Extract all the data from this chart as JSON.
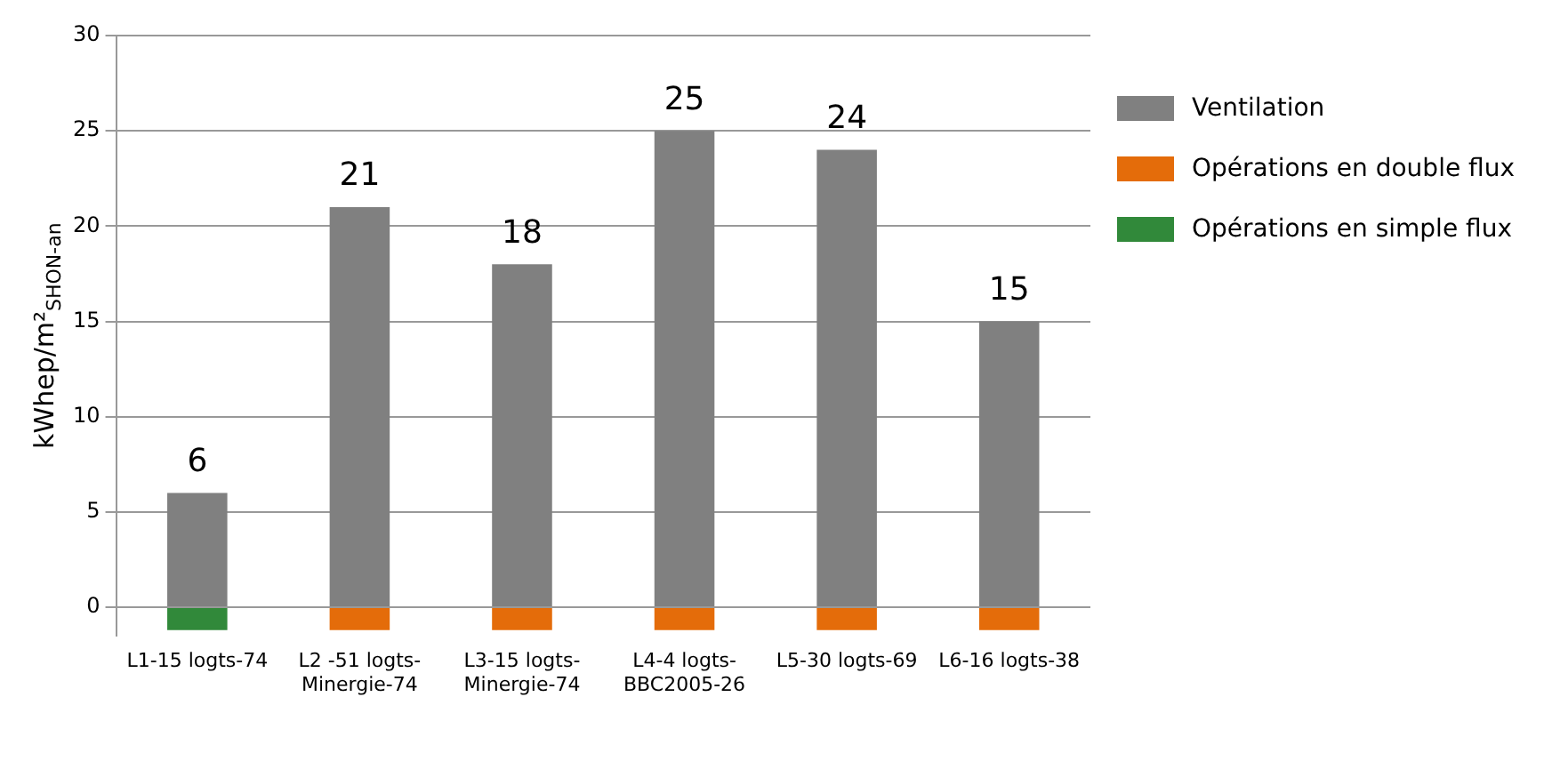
{
  "chart_data": {
    "type": "bar",
    "ylabel": "kWhep/m²$_{SHON-an}$",
    "categories": [
      "L1-15 logts-74",
      "L2 -51 logts-Minergie-74",
      "L3-15 logts-Minergie-74",
      "L4-4 logts-BBC2005-26",
      "L5-30 logts-69",
      "L6-16 logts-38"
    ],
    "series": [
      {
        "name": "Ventilation",
        "color": "#808080",
        "values": [
          6,
          21,
          18,
          25,
          24,
          15
        ],
        "value_labels": [
          "6",
          "21",
          "18",
          "25",
          "24",
          "15"
        ]
      },
      {
        "name": "Opérations en double flux",
        "color": "#e46c0a",
        "values": [
          null,
          -1.2,
          -1.2,
          -1.2,
          -1.2,
          -1.2
        ]
      },
      {
        "name": "Opérations en simple flux",
        "color": "#31893a",
        "values": [
          -1.2,
          null,
          null,
          null,
          null,
          null
        ]
      }
    ],
    "stacked": true,
    "ylim": [
      -1.5,
      30
    ],
    "yticks": [
      0,
      5,
      10,
      15,
      20,
      25,
      30
    ],
    "grid": "y",
    "legend": "right"
  }
}
